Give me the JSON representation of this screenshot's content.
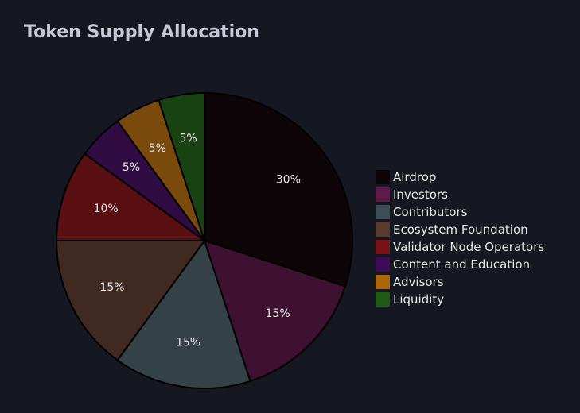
{
  "chart_data": {
    "type": "pie",
    "title": "Token Supply Allocation",
    "categories": [
      "Airdrop",
      "Investors",
      "Contributors",
      "Ecosystem Foundation",
      "Validator Node Operators",
      "Content and Education",
      "Advisors",
      "Liquidity"
    ],
    "values": [
      30,
      15,
      15,
      15,
      10,
      5,
      5,
      5
    ],
    "value_labels": [
      "30%",
      "15%",
      "15%",
      "15%",
      "10%",
      "5%",
      "5%",
      "5%"
    ],
    "colors": [
      "#0e0508",
      "#3e1131",
      "#344248",
      "#3f2920",
      "#5a0f13",
      "#300c43",
      "#7a4a0c",
      "#184212"
    ],
    "legend_colors": [
      "#0e0508",
      "#5e1a49",
      "#3c4d55",
      "#593a2c",
      "#7a1316",
      "#3e0c57",
      "#a8660d",
      "#1f5a16"
    ],
    "legend_position": "right",
    "direction": "clockwise",
    "start": "top"
  }
}
